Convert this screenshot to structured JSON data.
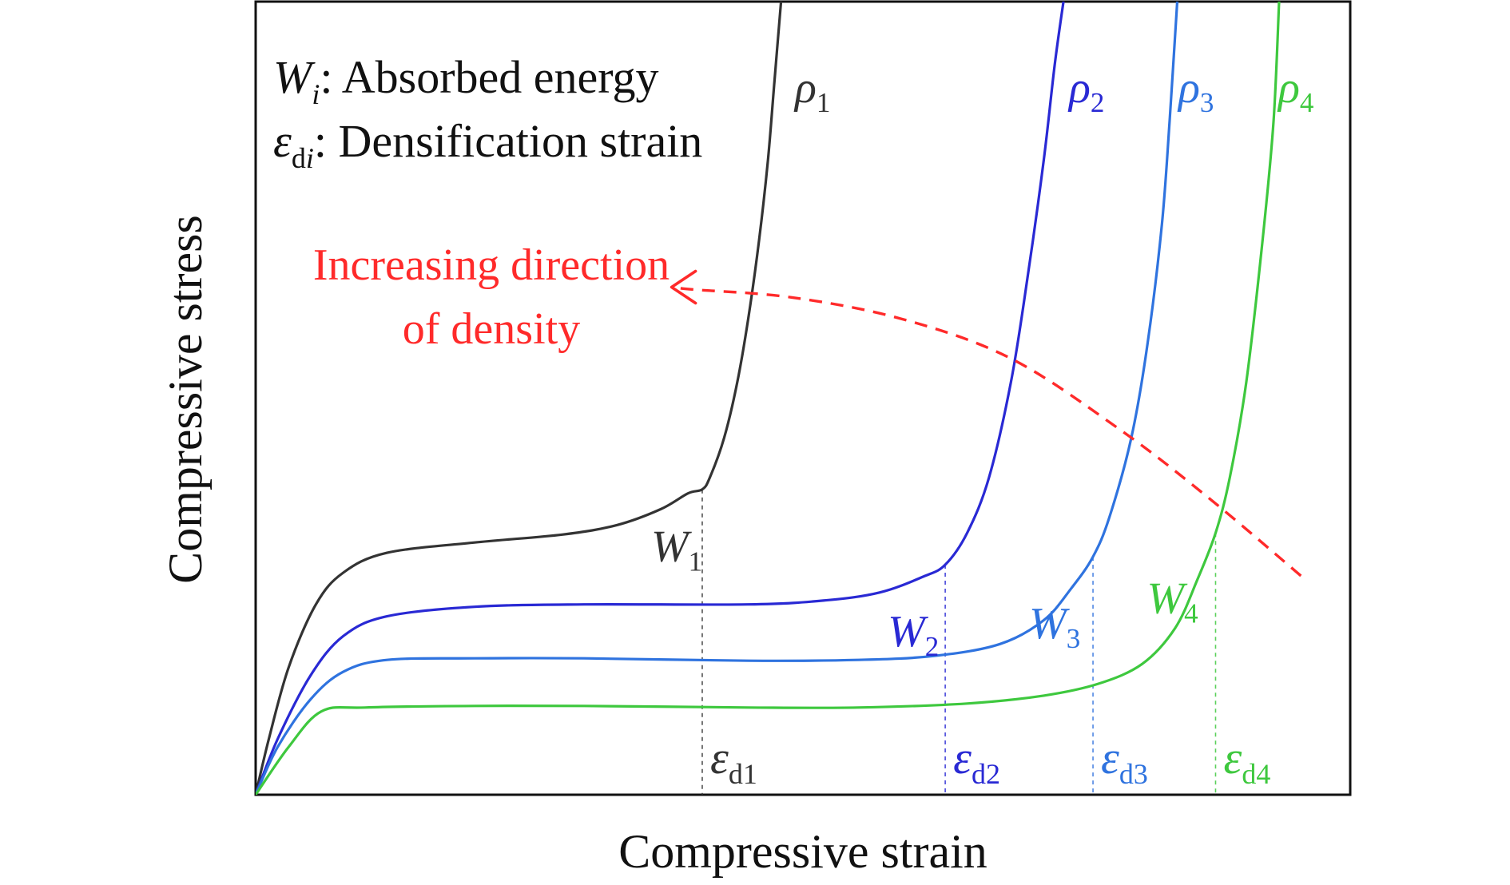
{
  "chart_data": {
    "type": "line",
    "title": "",
    "xlabel": "Compressive strain",
    "ylabel": "Compressive stress",
    "xlim": [
      0,
      1
    ],
    "ylim": [
      0,
      1
    ],
    "grid": false,
    "legend": {
      "w": {
        "symbol": "W",
        "sub": "i",
        "text": ": Absorbed energy"
      },
      "e": {
        "symbol": "ε",
        "sub_d": "d",
        "sub_i": "i",
        "text": ": Densification strain"
      }
    },
    "annotation": {
      "line1": "Increasing direction",
      "line2": "of density",
      "color": "#ff2a2a"
    },
    "series": [
      {
        "key": "rho1",
        "rho_sub": "1",
        "color": "#333333",
        "w_label": "W",
        "w_sub": "1",
        "eps_label": "ε",
        "eps_sub": "d1",
        "eps_x": 0.408,
        "eps_y": 0.385,
        "points": [
          [
            0,
            0
          ],
          [
            0.012,
            0.07
          ],
          [
            0.03,
            0.16
          ],
          [
            0.055,
            0.24
          ],
          [
            0.08,
            0.28
          ],
          [
            0.12,
            0.305
          ],
          [
            0.2,
            0.318
          ],
          [
            0.28,
            0.328
          ],
          [
            0.33,
            0.34
          ],
          [
            0.37,
            0.36
          ],
          [
            0.395,
            0.38
          ],
          [
            0.408,
            0.385
          ],
          [
            0.415,
            0.4
          ],
          [
            0.428,
            0.45
          ],
          [
            0.44,
            0.52
          ],
          [
            0.45,
            0.6
          ],
          [
            0.46,
            0.7
          ],
          [
            0.468,
            0.8
          ],
          [
            0.474,
            0.9
          ],
          [
            0.48,
            1.0
          ]
        ]
      },
      {
        "key": "rho2",
        "rho_sub": "2",
        "color": "#2929d4",
        "w_label": "W",
        "w_sub": "2",
        "eps_label": "ε",
        "eps_sub": "d2",
        "eps_x": 0.63,
        "eps_y": 0.29,
        "points": [
          [
            0,
            0
          ],
          [
            0.02,
            0.07
          ],
          [
            0.05,
            0.15
          ],
          [
            0.08,
            0.2
          ],
          [
            0.12,
            0.225
          ],
          [
            0.2,
            0.237
          ],
          [
            0.3,
            0.24
          ],
          [
            0.45,
            0.24
          ],
          [
            0.52,
            0.245
          ],
          [
            0.57,
            0.255
          ],
          [
            0.61,
            0.275
          ],
          [
            0.63,
            0.29
          ],
          [
            0.65,
            0.33
          ],
          [
            0.67,
            0.4
          ],
          [
            0.69,
            0.52
          ],
          [
            0.705,
            0.65
          ],
          [
            0.72,
            0.8
          ],
          [
            0.73,
            0.92
          ],
          [
            0.738,
            1.0
          ]
        ]
      },
      {
        "key": "rho3",
        "rho_sub": "3",
        "color": "#2f73df",
        "w_label": "W",
        "w_sub": "3",
        "eps_label": "ε",
        "eps_sub": "d3",
        "eps_x": 0.765,
        "eps_y": 0.3,
        "points": [
          [
            0,
            0
          ],
          [
            0.02,
            0.06
          ],
          [
            0.05,
            0.12
          ],
          [
            0.08,
            0.155
          ],
          [
            0.12,
            0.17
          ],
          [
            0.2,
            0.172
          ],
          [
            0.3,
            0.172
          ],
          [
            0.45,
            0.169
          ],
          [
            0.55,
            0.17
          ],
          [
            0.62,
            0.175
          ],
          [
            0.68,
            0.19
          ],
          [
            0.72,
            0.22
          ],
          [
            0.745,
            0.26
          ],
          [
            0.765,
            0.3
          ],
          [
            0.78,
            0.35
          ],
          [
            0.8,
            0.45
          ],
          [
            0.815,
            0.57
          ],
          [
            0.828,
            0.72
          ],
          [
            0.835,
            0.85
          ],
          [
            0.842,
            1.0
          ]
        ]
      },
      {
        "key": "rho4",
        "rho_sub": "4",
        "color": "#3ec83e",
        "w_label": "W",
        "w_sub": "4",
        "eps_label": "ε",
        "eps_sub": "d4",
        "eps_x": 0.877,
        "eps_y": 0.33,
        "points": [
          [
            0,
            0
          ],
          [
            0.03,
            0.06
          ],
          [
            0.06,
            0.105
          ],
          [
            0.1,
            0.11
          ],
          [
            0.2,
            0.112
          ],
          [
            0.3,
            0.112
          ],
          [
            0.45,
            0.11
          ],
          [
            0.55,
            0.11
          ],
          [
            0.65,
            0.115
          ],
          [
            0.72,
            0.125
          ],
          [
            0.77,
            0.14
          ],
          [
            0.81,
            0.165
          ],
          [
            0.84,
            0.21
          ],
          [
            0.86,
            0.27
          ],
          [
            0.877,
            0.33
          ],
          [
            0.89,
            0.4
          ],
          [
            0.905,
            0.52
          ],
          [
            0.92,
            0.7
          ],
          [
            0.93,
            0.85
          ],
          [
            0.935,
            1.0
          ]
        ]
      }
    ],
    "arrow_path": [
      [
        0.955,
        0.276
      ],
      [
        0.87,
        0.375
      ],
      [
        0.79,
        0.46
      ],
      [
        0.69,
        0.55
      ],
      [
        0.59,
        0.6
      ],
      [
        0.49,
        0.627
      ],
      [
        0.4,
        0.637
      ],
      [
        0.38,
        0.64
      ]
    ]
  }
}
